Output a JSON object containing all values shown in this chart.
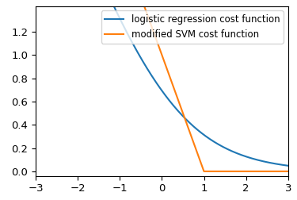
{
  "xlim": [
    -3,
    3
  ],
  "ylim": [
    -0.04,
    1.42
  ],
  "logistic_label": "logistic regression cost function",
  "svm_label": "modified SVM cost function",
  "logistic_color": "#1f77b4",
  "svm_color": "#ff7f0e",
  "linewidth": 1.5,
  "legend_loc": "upper right",
  "figsize": [
    3.75,
    2.52
  ],
  "dpi": 100,
  "legend_fontsize": 8.5,
  "tick_fontsize": 9.5
}
